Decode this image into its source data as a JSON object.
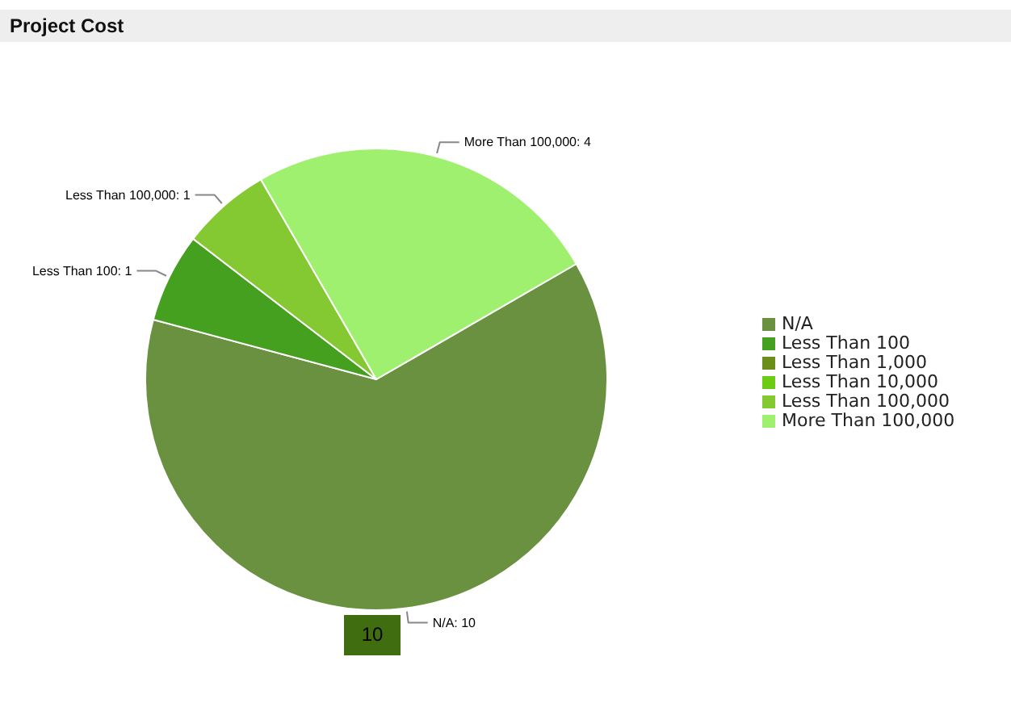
{
  "chart_data": {
    "type": "pie",
    "title": "Project Cost",
    "categories": [
      "N/A",
      "Less Than 100",
      "Less Than 1,000",
      "Less Than 10,000",
      "Less Than 100,000",
      "More Than 100,000"
    ],
    "values": [
      10,
      1,
      0,
      0,
      1,
      4
    ],
    "colors": [
      "#6a9140",
      "#45a020",
      "#6b8e1a",
      "#6ccc14",
      "#84c832",
      "#a0f070"
    ],
    "value_labels": [
      "N/A: 10",
      "Less Than 100: 1",
      null,
      null,
      "Less Than 100,000: 1",
      "More Than 100,000: 4"
    ],
    "annotations": [
      "10"
    ],
    "legend": "right"
  }
}
